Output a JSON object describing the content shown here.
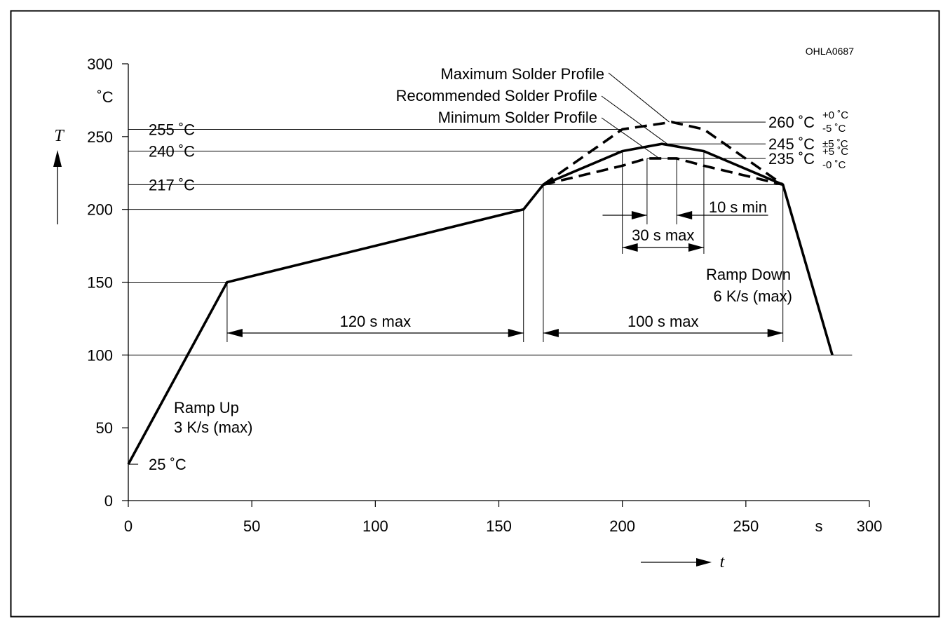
{
  "figure_code": "OHLA0687",
  "chart_data": {
    "type": "line",
    "x_unit": "s",
    "y_unit": "˚C",
    "x_symbol": "t",
    "y_symbol": "T",
    "xlim": [
      0,
      300
    ],
    "ylim": [
      0,
      300
    ],
    "x_ticks": [
      "0",
      "50",
      "100",
      "150",
      "200",
      "250",
      "300"
    ],
    "y_ticks": [
      "0",
      "50",
      "100",
      "150",
      "200",
      "250",
      "300"
    ],
    "series": [
      {
        "name": "Recommended Solder Profile",
        "style": "solid",
        "x": [
          0,
          40,
          160,
          168,
          200,
          216,
          233,
          265,
          285
        ],
        "y": [
          25,
          150,
          200,
          217,
          240,
          245,
          240,
          217,
          100
        ]
      },
      {
        "name": "Maximum Solder Profile",
        "style": "dashed",
        "x": [
          168,
          200,
          220,
          233,
          265
        ],
        "y": [
          217,
          255,
          260,
          255,
          217
        ]
      },
      {
        "name": "Minimum Solder Profile",
        "style": "dashed",
        "x": [
          168,
          200,
          210,
          222,
          233,
          265
        ],
        "y": [
          217,
          230,
          235,
          235,
          230,
          217
        ]
      }
    ],
    "level_labels": [
      {
        "y": 255,
        "label": "255 ˚C"
      },
      {
        "y": 240,
        "label": "240 ˚C"
      },
      {
        "y": 217,
        "label": "217 ˚C"
      },
      {
        "y": 25,
        "label": "25 ˚C"
      }
    ],
    "peak_labels": [
      {
        "y": 260,
        "value": "260 ˚C",
        "tol_top": "+0 ˚C",
        "tol_bottom": "-5 ˚C"
      },
      {
        "y": 245,
        "value": "245 ˚C",
        "tol": "±5 ˚C"
      },
      {
        "y": 235,
        "value": "235 ˚C",
        "tol_top": "+5 ˚C",
        "tol_bottom": "-0 ˚C"
      }
    ],
    "durations": [
      {
        "label": "120 s max",
        "x_from": 40,
        "x_to": 160
      },
      {
        "label": "100 s max",
        "x_from": 168,
        "x_to": 265
      },
      {
        "label": "30 s max",
        "x_from": 200,
        "x_to": 233
      },
      {
        "label": "10 s min",
        "x_from": 210,
        "x_to": 222
      }
    ],
    "annotations": {
      "ramp_up_line1": "Ramp Up",
      "ramp_up_line2": "3 K/s (max)",
      "ramp_down_line1": "Ramp Down",
      "ramp_down_line2": "6 K/s (max)"
    },
    "grid": false,
    "legend": "none"
  }
}
